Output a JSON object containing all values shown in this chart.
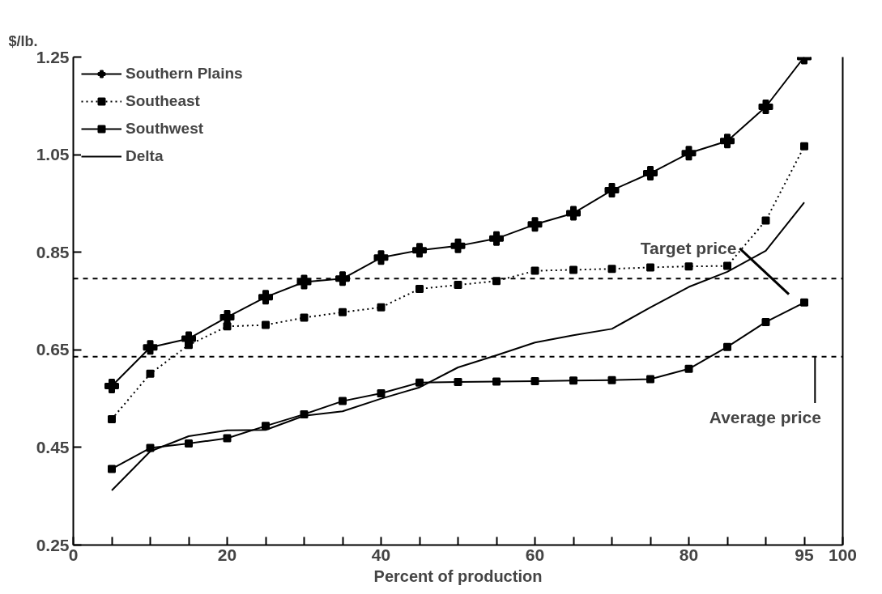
{
  "chart_data": {
    "type": "line",
    "xlabel": "Percent of production",
    "ylabel": "$/lb.",
    "x": [
      5,
      10,
      15,
      20,
      25,
      30,
      35,
      40,
      45,
      50,
      55,
      60,
      65,
      70,
      75,
      80,
      85,
      90,
      95
    ],
    "series": [
      {
        "name": "Southern Plains",
        "color": "#000000",
        "marker": "cross",
        "line_style": "solid",
        "values": [
          0.576,
          0.655,
          0.673,
          0.717,
          0.758,
          0.789,
          0.796,
          0.839,
          0.854,
          0.863,
          0.878,
          0.907,
          0.93,
          0.977,
          1.012,
          1.053,
          1.078,
          1.148,
          1.25
        ]
      },
      {
        "name": "Southeast",
        "color": "#000000",
        "marker": "square",
        "line_style": "dotted",
        "values": [
          0.508,
          0.601,
          0.66,
          0.698,
          0.701,
          0.716,
          0.727,
          0.737,
          0.775,
          0.783,
          0.791,
          0.812,
          0.814,
          0.816,
          0.819,
          0.821,
          0.822,
          0.915,
          1.067
        ]
      },
      {
        "name": "Southwest",
        "color": "#000000",
        "marker": "square",
        "line_style": "solid",
        "values": [
          0.406,
          0.449,
          0.458,
          0.469,
          0.494,
          0.518,
          0.545,
          0.561,
          0.583,
          0.584,
          0.585,
          0.586,
          0.587,
          0.588,
          0.59,
          0.611,
          0.656,
          0.707,
          0.747
        ]
      },
      {
        "name": "Delta",
        "color": "#000000",
        "marker": "none",
        "line_style": "solid",
        "values": [
          0.362,
          0.442,
          0.473,
          0.485,
          0.486,
          0.515,
          0.524,
          0.55,
          0.573,
          0.614,
          0.639,
          0.665,
          0.68,
          0.693,
          0.737,
          0.779,
          0.81,
          0.853,
          0.952
        ]
      }
    ],
    "xlim": [
      0,
      100
    ],
    "xticks": [
      0,
      {
        "value": 5,
        "label": null
      },
      {
        "value": 10,
        "label": null
      },
      {
        "value": 15,
        "label": null
      },
      20,
      {
        "value": 25,
        "label": null
      },
      {
        "value": 30,
        "label": null
      },
      {
        "value": 35,
        "label": null
      },
      40,
      {
        "value": 45,
        "label": null
      },
      {
        "value": 50,
        "label": null
      },
      {
        "value": 55,
        "label": null
      },
      60,
      {
        "value": 65,
        "label": null
      },
      {
        "value": 70,
        "label": null
      },
      {
        "value": 75,
        "label": null
      },
      80,
      {
        "value": 85,
        "label": null
      },
      {
        "value": 90,
        "label": null
      },
      95,
      100
    ],
    "ylim": [
      0.25,
      1.25
    ],
    "yticks": [
      0.25,
      0.45,
      0.65,
      0.85,
      1.05,
      1.25
    ],
    "ref_lines": [
      {
        "axis": "y",
        "value": 0.796,
        "color": "#000000",
        "line_style": "dashed"
      },
      {
        "axis": "y",
        "value": 0.636,
        "color": "#000000",
        "line_style": "dashed"
      }
    ],
    "annotations": [
      {
        "text": "Target price",
        "x": 90.8,
        "y": 0.796
      },
      {
        "text": "Average price",
        "x": 96.4,
        "y": 0.636
      }
    ],
    "legend": "top left",
    "grid": false
  }
}
